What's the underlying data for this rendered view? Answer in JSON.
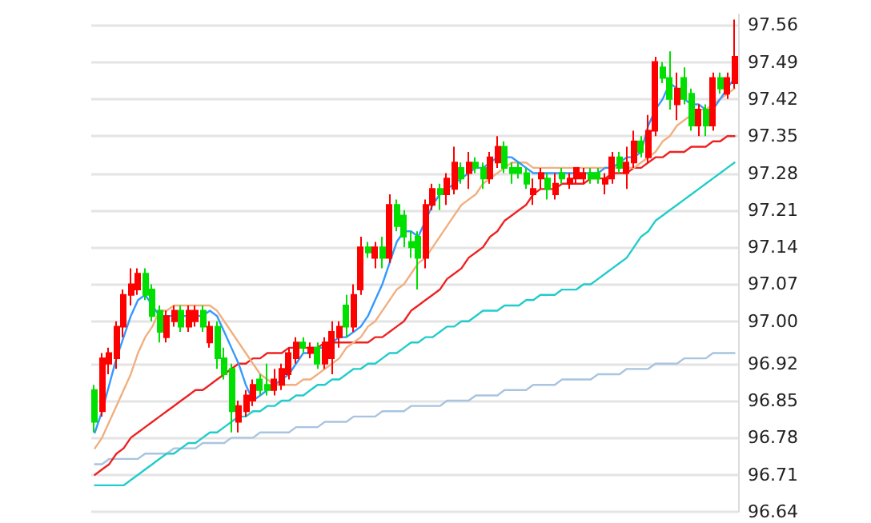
{
  "chart_data": {
    "type": "candlestick",
    "categories": [
      null,
      null,
      null,
      null,
      null,
      null,
      null,
      null,
      null,
      null,
      null,
      null,
      null,
      null,
      null,
      null,
      null,
      null,
      null,
      null,
      null,
      null,
      null,
      null,
      null,
      null,
      null,
      null,
      null,
      null,
      null,
      null,
      null,
      null,
      null,
      null,
      null,
      null,
      null,
      null,
      null,
      null,
      null,
      null,
      null,
      null,
      null,
      null,
      null,
      null,
      null,
      null,
      null,
      null,
      null,
      null,
      null,
      null,
      null,
      null,
      null,
      null,
      null,
      null,
      null,
      null,
      null,
      null,
      null,
      null,
      null,
      null,
      null,
      null,
      null,
      null,
      null,
      null,
      null,
      null,
      null,
      null,
      null,
      null,
      null,
      null,
      null,
      null,
      null,
      null
    ],
    "ohlc": [
      [
        96.87,
        96.88,
        96.79,
        96.81
      ],
      [
        96.83,
        96.94,
        96.82,
        96.93
      ],
      [
        96.92,
        96.95,
        96.9,
        96.94
      ],
      [
        96.93,
        97.0,
        96.91,
        96.99
      ],
      [
        96.99,
        97.06,
        96.97,
        97.05
      ],
      [
        97.05,
        97.1,
        97.03,
        97.07
      ],
      [
        97.06,
        97.1,
        97.05,
        97.09
      ],
      [
        97.09,
        97.1,
        97.04,
        97.05
      ],
      [
        97.06,
        97.07,
        97.0,
        97.01
      ],
      [
        97.02,
        97.03,
        96.96,
        96.98
      ],
      [
        96.97,
        97.02,
        96.96,
        97.01
      ],
      [
        97.0,
        97.03,
        96.99,
        97.02
      ],
      [
        97.02,
        97.03,
        96.98,
        96.99
      ],
      [
        96.99,
        97.03,
        96.98,
        97.02
      ],
      [
        97.0,
        97.03,
        96.99,
        97.02
      ],
      [
        97.02,
        97.03,
        96.98,
        96.99
      ],
      [
        96.96,
        97.0,
        96.95,
        96.99
      ],
      [
        96.99,
        97.0,
        96.91,
        96.93
      ],
      [
        96.93,
        96.95,
        96.89,
        96.9
      ],
      [
        96.91,
        96.92,
        96.79,
        96.83
      ],
      [
        96.81,
        96.85,
        96.79,
        96.84
      ],
      [
        96.83,
        96.87,
        96.82,
        96.86
      ],
      [
        96.85,
        96.89,
        96.84,
        96.88
      ],
      [
        96.89,
        96.9,
        96.86,
        96.87
      ],
      [
        96.88,
        96.92,
        96.86,
        96.87
      ],
      [
        96.87,
        96.91,
        96.86,
        96.89
      ],
      [
        96.88,
        96.92,
        96.87,
        96.91
      ],
      [
        96.9,
        96.95,
        96.89,
        96.94
      ],
      [
        96.93,
        96.97,
        96.92,
        96.96
      ],
      [
        96.96,
        96.97,
        96.94,
        96.95
      ],
      [
        96.94,
        96.96,
        96.93,
        96.95
      ],
      [
        96.95,
        96.96,
        96.91,
        96.92
      ],
      [
        96.92,
        96.97,
        96.91,
        96.96
      ],
      [
        96.93,
        97.0,
        96.9,
        96.98
      ],
      [
        96.97,
        97.0,
        96.95,
        96.99
      ],
      [
        97.03,
        97.05,
        96.97,
        96.99
      ],
      [
        96.99,
        97.07,
        96.98,
        97.05
      ],
      [
        97.06,
        97.16,
        97.05,
        97.14
      ],
      [
        97.14,
        97.15,
        97.12,
        97.13
      ],
      [
        97.12,
        97.15,
        97.1,
        97.14
      ],
      [
        97.14,
        97.16,
        97.1,
        97.12
      ],
      [
        97.12,
        97.24,
        97.11,
        97.22
      ],
      [
        97.22,
        97.23,
        97.17,
        97.18
      ],
      [
        97.2,
        97.21,
        97.14,
        97.16
      ],
      [
        97.15,
        97.17,
        97.12,
        97.14
      ],
      [
        97.16,
        97.17,
        97.06,
        97.12
      ],
      [
        97.12,
        97.23,
        97.1,
        97.22
      ],
      [
        97.22,
        97.26,
        97.21,
        97.25
      ],
      [
        97.25,
        97.26,
        97.21,
        97.24
      ],
      [
        97.24,
        97.28,
        97.22,
        97.27
      ],
      [
        97.25,
        97.33,
        97.24,
        97.3
      ],
      [
        97.29,
        97.3,
        97.26,
        97.27
      ],
      [
        97.28,
        97.32,
        97.25,
        97.3
      ],
      [
        97.3,
        97.31,
        97.28,
        97.29
      ],
      [
        97.29,
        97.3,
        97.25,
        97.27
      ],
      [
        97.27,
        97.32,
        97.26,
        97.31
      ],
      [
        97.3,
        97.35,
        97.29,
        97.33
      ],
      [
        97.33,
        97.34,
        97.28,
        97.29
      ],
      [
        97.29,
        97.3,
        97.26,
        97.28
      ],
      [
        97.29,
        97.3,
        97.27,
        97.28
      ],
      [
        97.28,
        97.29,
        97.25,
        97.26
      ],
      [
        97.24,
        97.27,
        97.22,
        97.25
      ],
      [
        97.27,
        97.29,
        97.25,
        97.28
      ],
      [
        97.27,
        97.28,
        97.23,
        97.25
      ],
      [
        97.24,
        97.28,
        97.23,
        97.26
      ],
      [
        97.28,
        97.29,
        97.26,
        97.27
      ],
      [
        97.26,
        97.28,
        97.25,
        97.27
      ],
      [
        97.27,
        97.29,
        97.26,
        97.29
      ],
      [
        97.27,
        97.29,
        97.26,
        97.28
      ],
      [
        97.28,
        97.29,
        97.26,
        97.27
      ],
      [
        97.28,
        97.29,
        97.26,
        97.27
      ],
      [
        97.26,
        97.28,
        97.24,
        97.27
      ],
      [
        97.27,
        97.32,
        97.26,
        97.31
      ],
      [
        97.31,
        97.32,
        97.28,
        97.29
      ],
      [
        97.28,
        97.33,
        97.25,
        97.3
      ],
      [
        97.3,
        97.36,
        97.29,
        97.34
      ],
      [
        97.34,
        97.35,
        97.31,
        97.32
      ],
      [
        97.31,
        97.39,
        97.3,
        97.36
      ],
      [
        97.36,
        97.5,
        97.35,
        97.49
      ],
      [
        97.48,
        97.49,
        97.45,
        97.46
      ],
      [
        97.46,
        97.51,
        97.4,
        97.42
      ],
      [
        97.41,
        97.47,
        97.38,
        97.44
      ],
      [
        97.46,
        97.48,
        97.41,
        97.42
      ],
      [
        97.43,
        97.44,
        97.36,
        97.37
      ],
      [
        97.37,
        97.41,
        97.35,
        97.4
      ],
      [
        97.4,
        97.41,
        97.35,
        97.37
      ],
      [
        97.37,
        97.47,
        97.36,
        97.46
      ],
      [
        97.46,
        97.47,
        97.43,
        97.44
      ],
      [
        97.43,
        97.47,
        97.42,
        97.46
      ],
      [
        97.45,
        97.57,
        97.44,
        97.5
      ]
    ],
    "colors": [
      "#00e000",
      "#ff0000",
      "#ff0000",
      "#ff0000",
      "#ff0000",
      "#ff0000",
      "#ff0000",
      "#00e000",
      "#00e000",
      "#00e000",
      "#ff0000",
      "#ff0000",
      "#00e000",
      "#ff0000",
      "#ff0000",
      "#00e000",
      "#ff0000",
      "#00e000",
      "#00e000",
      "#00e000",
      "#ff0000",
      "#ff0000",
      "#ff0000",
      "#00e000",
      "#00e000",
      "#ff0000",
      "#ff0000",
      "#ff0000",
      "#ff0000",
      "#00e000",
      "#ff0000",
      "#00e000",
      "#ff0000",
      "#ff0000",
      "#ff0000",
      "#00e000",
      "#ff0000",
      "#ff0000",
      "#00e000",
      "#ff0000",
      "#00e000",
      "#ff0000",
      "#00e000",
      "#00e000",
      "#00e000",
      "#00e000",
      "#ff0000",
      "#ff0000",
      "#00e000",
      "#ff0000",
      "#ff0000",
      "#00e000",
      "#ff0000",
      "#00e000",
      "#00e000",
      "#ff0000",
      "#ff0000",
      "#00e000",
      "#00e000",
      "#00e000",
      "#00e000",
      "#ff0000",
      "#ff0000",
      "#00e000",
      "#ff0000",
      "#00e000",
      "#ff0000",
      "#ff0000",
      "#ff0000",
      "#00e000",
      "#00e000",
      "#ff0000",
      "#ff0000",
      "#00e000",
      "#ff0000",
      "#ff0000",
      "#00e000",
      "#ff0000",
      "#ff0000",
      "#00e000",
      "#00e000",
      "#ff0000",
      "#00e000",
      "#00e000",
      "#ff0000",
      "#00e000",
      "#ff0000",
      "#00e000",
      "#ff0000",
      "#ff0000"
    ],
    "series": [
      {
        "type": "line",
        "color": "#a8c4e0",
        "values": [
          96.73,
          96.73,
          96.74,
          96.74,
          96.74,
          96.74,
          96.74,
          96.75,
          96.75,
          96.75,
          96.75,
          96.76,
          96.76,
          96.76,
          96.76,
          96.77,
          96.77,
          96.77,
          96.77,
          96.78,
          96.78,
          96.78,
          96.78,
          96.79,
          96.79,
          96.79,
          96.79,
          96.79,
          96.8,
          96.8,
          96.8,
          96.8,
          96.81,
          96.81,
          96.81,
          96.81,
          96.82,
          96.82,
          96.82,
          96.82,
          96.83,
          96.83,
          96.83,
          96.83,
          96.84,
          96.84,
          96.84,
          96.84,
          96.84,
          96.85,
          96.85,
          96.85,
          96.85,
          96.86,
          96.86,
          96.86,
          96.86,
          96.87,
          96.87,
          96.87,
          96.87,
          96.88,
          96.88,
          96.88,
          96.88,
          96.89,
          96.89,
          96.89,
          96.89,
          96.89,
          96.9,
          96.9,
          96.9,
          96.9,
          96.91,
          96.91,
          96.91,
          96.91,
          96.92,
          96.92,
          96.92,
          96.92,
          96.93,
          96.93,
          96.93,
          96.93,
          96.94,
          96.94,
          96.94,
          96.94
        ]
      },
      {
        "type": "line",
        "color": "#22cccc",
        "values": [
          96.69,
          96.69,
          96.69,
          96.69,
          96.69,
          96.7,
          96.71,
          96.72,
          96.73,
          96.74,
          96.75,
          96.75,
          96.76,
          96.77,
          96.77,
          96.78,
          96.79,
          96.79,
          96.8,
          96.81,
          96.82,
          96.82,
          96.83,
          96.83,
          96.84,
          96.84,
          96.85,
          96.85,
          96.86,
          96.86,
          96.87,
          96.88,
          96.88,
          96.89,
          96.89,
          96.9,
          96.91,
          96.91,
          96.92,
          96.92,
          96.93,
          96.94,
          96.94,
          96.95,
          96.96,
          96.96,
          96.97,
          96.97,
          96.98,
          96.99,
          96.99,
          97.0,
          97.0,
          97.01,
          97.02,
          97.02,
          97.02,
          97.03,
          97.03,
          97.03,
          97.04,
          97.04,
          97.05,
          97.05,
          97.05,
          97.06,
          97.06,
          97.06,
          97.07,
          97.07,
          97.08,
          97.09,
          97.1,
          97.11,
          97.12,
          97.14,
          97.16,
          97.17,
          97.19,
          97.2,
          97.21,
          97.22,
          97.23,
          97.24,
          97.25,
          97.26,
          97.27,
          97.28,
          97.29,
          97.3
        ]
      },
      {
        "type": "line",
        "color": "#ee2222",
        "values": [
          96.71,
          96.72,
          96.73,
          96.75,
          96.76,
          96.78,
          96.79,
          96.8,
          96.81,
          96.82,
          96.83,
          96.84,
          96.85,
          96.86,
          96.87,
          96.87,
          96.88,
          96.89,
          96.9,
          96.91,
          96.92,
          96.92,
          96.93,
          96.93,
          96.94,
          96.94,
          96.94,
          96.95,
          96.95,
          96.95,
          96.95,
          96.95,
          96.96,
          96.96,
          96.96,
          96.96,
          96.96,
          96.96,
          96.96,
          96.97,
          96.97,
          96.98,
          96.99,
          97.0,
          97.02,
          97.03,
          97.04,
          97.05,
          97.06,
          97.08,
          97.09,
          97.1,
          97.12,
          97.13,
          97.14,
          97.16,
          97.17,
          97.19,
          97.2,
          97.21,
          97.22,
          97.24,
          97.25,
          97.25,
          97.25,
          97.26,
          97.26,
          97.26,
          97.26,
          97.27,
          97.27,
          97.27,
          97.28,
          97.28,
          97.28,
          97.29,
          97.29,
          97.3,
          97.31,
          97.31,
          97.32,
          97.32,
          97.32,
          97.33,
          97.33,
          97.33,
          97.34,
          97.34,
          97.35,
          97.35
        ]
      },
      {
        "type": "line",
        "color": "#f0b080",
        "values": [
          96.76,
          96.78,
          96.81,
          96.84,
          96.87,
          96.9,
          96.94,
          96.97,
          96.99,
          97.02,
          97.02,
          97.03,
          97.03,
          97.03,
          97.03,
          97.03,
          97.03,
          97.02,
          97.0,
          96.98,
          96.96,
          96.94,
          96.92,
          96.9,
          96.89,
          96.88,
          96.88,
          96.88,
          96.88,
          96.89,
          96.89,
          96.9,
          96.91,
          96.92,
          96.93,
          96.95,
          96.96,
          96.97,
          96.99,
          97.0,
          97.02,
          97.04,
          97.06,
          97.07,
          97.09,
          97.11,
          97.12,
          97.14,
          97.16,
          97.18,
          97.2,
          97.22,
          97.23,
          97.24,
          97.26,
          97.27,
          97.28,
          97.29,
          97.3,
          97.3,
          97.3,
          97.29,
          97.29,
          97.29,
          97.29,
          97.29,
          97.29,
          97.29,
          97.29,
          97.29,
          97.29,
          97.29,
          97.29,
          97.29,
          97.29,
          97.29,
          97.3,
          97.31,
          97.32,
          97.34,
          97.35,
          97.37,
          97.38,
          97.39,
          97.4,
          97.4,
          97.41,
          97.42,
          97.43,
          97.44
        ]
      },
      {
        "type": "line",
        "color": "#3399ff",
        "values": [
          96.79,
          96.83,
          96.88,
          96.93,
          96.97,
          97.01,
          97.04,
          97.05,
          97.03,
          97.01,
          97.01,
          97.01,
          97.01,
          97.01,
          97.01,
          97.01,
          97.02,
          97.01,
          96.98,
          96.95,
          96.92,
          96.88,
          96.85,
          96.86,
          96.87,
          96.88,
          96.89,
          96.9,
          96.92,
          96.94,
          96.94,
          96.95,
          96.95,
          96.96,
          96.97,
          96.97,
          96.98,
          96.99,
          97.01,
          97.04,
          97.07,
          97.11,
          97.15,
          97.17,
          97.17,
          97.16,
          97.19,
          97.22,
          97.24,
          97.25,
          97.26,
          97.27,
          97.28,
          97.29,
          97.29,
          97.3,
          97.31,
          97.31,
          97.31,
          97.3,
          97.29,
          97.28,
          97.28,
          97.28,
          97.28,
          97.28,
          97.28,
          97.28,
          97.28,
          97.28,
          97.28,
          97.29,
          97.29,
          97.3,
          97.31,
          97.31,
          97.32,
          97.37,
          97.4,
          97.42,
          97.45,
          97.44,
          97.42,
          97.41,
          97.41,
          97.4,
          97.4,
          97.42,
          97.44,
          97.46
        ]
      }
    ],
    "ylim": [
      96.64,
      97.58
    ],
    "yticks": [
      97.56,
      97.49,
      97.42,
      97.35,
      97.28,
      97.21,
      97.14,
      97.07,
      {
        "value": 97,
        "label": "97.00"
      },
      96.92,
      96.85,
      96.78,
      96.71,
      96.64
    ],
    "grid": "y",
    "tick_labels": "y"
  }
}
